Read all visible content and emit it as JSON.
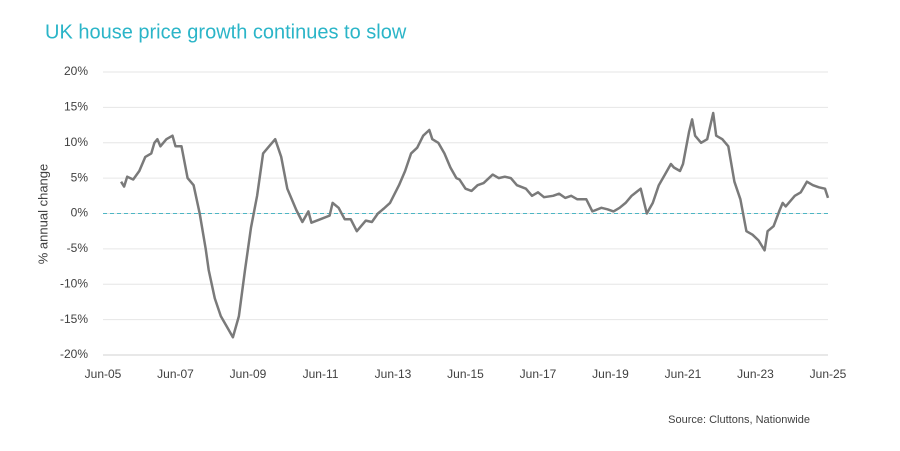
{
  "chart_data": {
    "type": "line",
    "title": "UK house price growth continues to slow",
    "y_label": "% annual change",
    "source": "Source: Cluttons, Nationwide",
    "xlim": [
      "Jun-05",
      "Jun-25"
    ],
    "xticks": [
      "Jun-05",
      "Jun-07",
      "Jun-09",
      "Jun-11",
      "Jun-13",
      "Jun-15",
      "Jun-17",
      "Jun-19",
      "Jun-21",
      "Jun-23",
      "Jun-25"
    ],
    "ylim": [
      -20,
      20
    ],
    "yticks": [
      {
        "value": -20,
        "label": "-20%"
      },
      {
        "value": -15,
        "label": "-15%"
      },
      {
        "value": -10,
        "label": "-10%"
      },
      {
        "value": -5,
        "label": "-5%"
      },
      {
        "value": 0,
        "label": "0%"
      },
      {
        "value": 5,
        "label": "5%"
      },
      {
        "value": 10,
        "label": "10%"
      },
      {
        "value": 15,
        "label": "15%"
      },
      {
        "value": 20,
        "label": "20%"
      }
    ],
    "grid": true,
    "zero_line_color": "#4db6c4",
    "x": [
      "Dec-05",
      "Jan-06",
      "Feb-06",
      "Apr-06",
      "Jun-06",
      "Aug-06",
      "Oct-06",
      "Nov-06",
      "Dec-06",
      "Jan-07",
      "Mar-07",
      "May-07",
      "Jun-07",
      "Aug-07",
      "Oct-07",
      "Dec-07",
      "Feb-08",
      "Apr-08",
      "May-08",
      "Jul-08",
      "Sep-08",
      "Nov-08",
      "Jan-09",
      "Mar-09",
      "May-09",
      "Jul-09",
      "Sep-09",
      "Nov-09",
      "Jan-10",
      "Mar-10",
      "May-10",
      "Jul-10",
      "Oct-10",
      "Dec-10",
      "Feb-11",
      "Mar-11",
      "Jun-11",
      "Sep-11",
      "Oct-11",
      "Dec-11",
      "Feb-12",
      "Apr-12",
      "Jun-12",
      "Sep-12",
      "Nov-12",
      "Jan-13",
      "Mar-13",
      "May-13",
      "Aug-13",
      "Oct-13",
      "Dec-13",
      "Feb-14",
      "Apr-14",
      "Jun-14",
      "Jul-14",
      "Sep-14",
      "Nov-14",
      "Jan-15",
      "Mar-15",
      "Apr-15",
      "Jun-15",
      "Aug-15",
      "Oct-15",
      "Dec-15",
      "Mar-16",
      "May-16",
      "Jul-16",
      "Sep-16",
      "Nov-16",
      "Feb-17",
      "Apr-17",
      "Jun-17",
      "Aug-17",
      "Nov-17",
      "Jan-18",
      "Mar-18",
      "May-18",
      "Jul-18",
      "Oct-18",
      "Dec-18",
      "Mar-19",
      "May-19",
      "Jul-19",
      "Sep-19",
      "Nov-19",
      "Jan-20",
      "Apr-20",
      "Jun-20",
      "Aug-20",
      "Oct-20",
      "Dec-20",
      "Feb-21",
      "Mar-21",
      "May-21",
      "Jun-21",
      "Aug-21",
      "Sep-21",
      "Oct-21",
      "Dec-21",
      "Feb-22",
      "Apr-22",
      "May-22",
      "Jul-22",
      "Sep-22",
      "Nov-22",
      "Jan-23",
      "Mar-23",
      "May-23",
      "Jul-23",
      "Sep-23",
      "Oct-23",
      "Dec-23",
      "Feb-24",
      "Mar-24",
      "Apr-24",
      "May-24",
      "Jul-24",
      "Sep-24",
      "Nov-24",
      "Jan-25",
      "Mar-25",
      "May-25",
      "Jun-25"
    ],
    "series": [
      {
        "name": "UK house price growth",
        "color": "#7a7a7a",
        "values": [
          4.5,
          3.8,
          5.2,
          4.8,
          6.0,
          8.0,
          8.5,
          10.0,
          10.5,
          9.5,
          10.5,
          11.0,
          9.5,
          9.5,
          5.0,
          4.0,
          0.0,
          -5,
          -8,
          -12,
          -14.5,
          -16,
          -17.5,
          -14.5,
          -8,
          -2,
          2.5,
          8.5,
          9.5,
          10.5,
          8,
          3.5,
          0.5,
          -1.2,
          0.3,
          -1.3,
          -0.8,
          -0.3,
          1.5,
          0.8,
          -0.8,
          -0.8,
          -2.5,
          -1.0,
          -1.2,
          0.0,
          0.7,
          1.5,
          4.0,
          6.0,
          8.5,
          9.3,
          11.0,
          11.8,
          10.5,
          10.0,
          8.5,
          6.5,
          5.0,
          4.8,
          3.5,
          3.2,
          4.0,
          4.3,
          5.5,
          5.0,
          5.2,
          5.0,
          4.0,
          3.5,
          2.5,
          3.0,
          2.3,
          2.5,
          2.8,
          2.2,
          2.5,
          2.0,
          2.0,
          0.3,
          0.8,
          0.6,
          0.3,
          0.8,
          1.5,
          2.5,
          3.5,
          0.0,
          1.5,
          4.0,
          5.5,
          7.0,
          6.5,
          6.0,
          7.0,
          11.5,
          13.3,
          11.0,
          10.0,
          10.5,
          14.2,
          11.0,
          10.5,
          9.5,
          4.5,
          2.0,
          -2.5,
          -3.0,
          -3.8,
          -5.2,
          -2.5,
          -1.8,
          0.5,
          1.5,
          1.0,
          1.5,
          2.5,
          3.0,
          4.5,
          4.0,
          3.7,
          3.5,
          2.2
        ]
      }
    ]
  }
}
